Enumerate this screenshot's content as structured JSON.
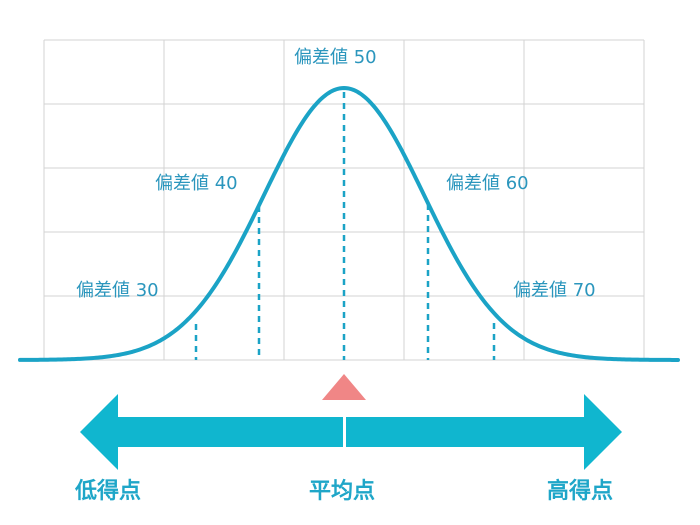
{
  "colors": {
    "curve": "#1ba3c6",
    "label": "#2b96bd",
    "grid": "#d3d3d3",
    "arrow": "#10b6cf",
    "marker": "#f08686",
    "axis_text": "#1fa6c8"
  },
  "deviation_labels": {
    "d30": "偏差値 30",
    "d40": "偏差値 40",
    "d50": "偏差値 50",
    "d60": "偏差値 60",
    "d70": "偏差値 70"
  },
  "axis_labels": {
    "low": "低得点",
    "mean": "平均点",
    "high": "高得点"
  }
}
